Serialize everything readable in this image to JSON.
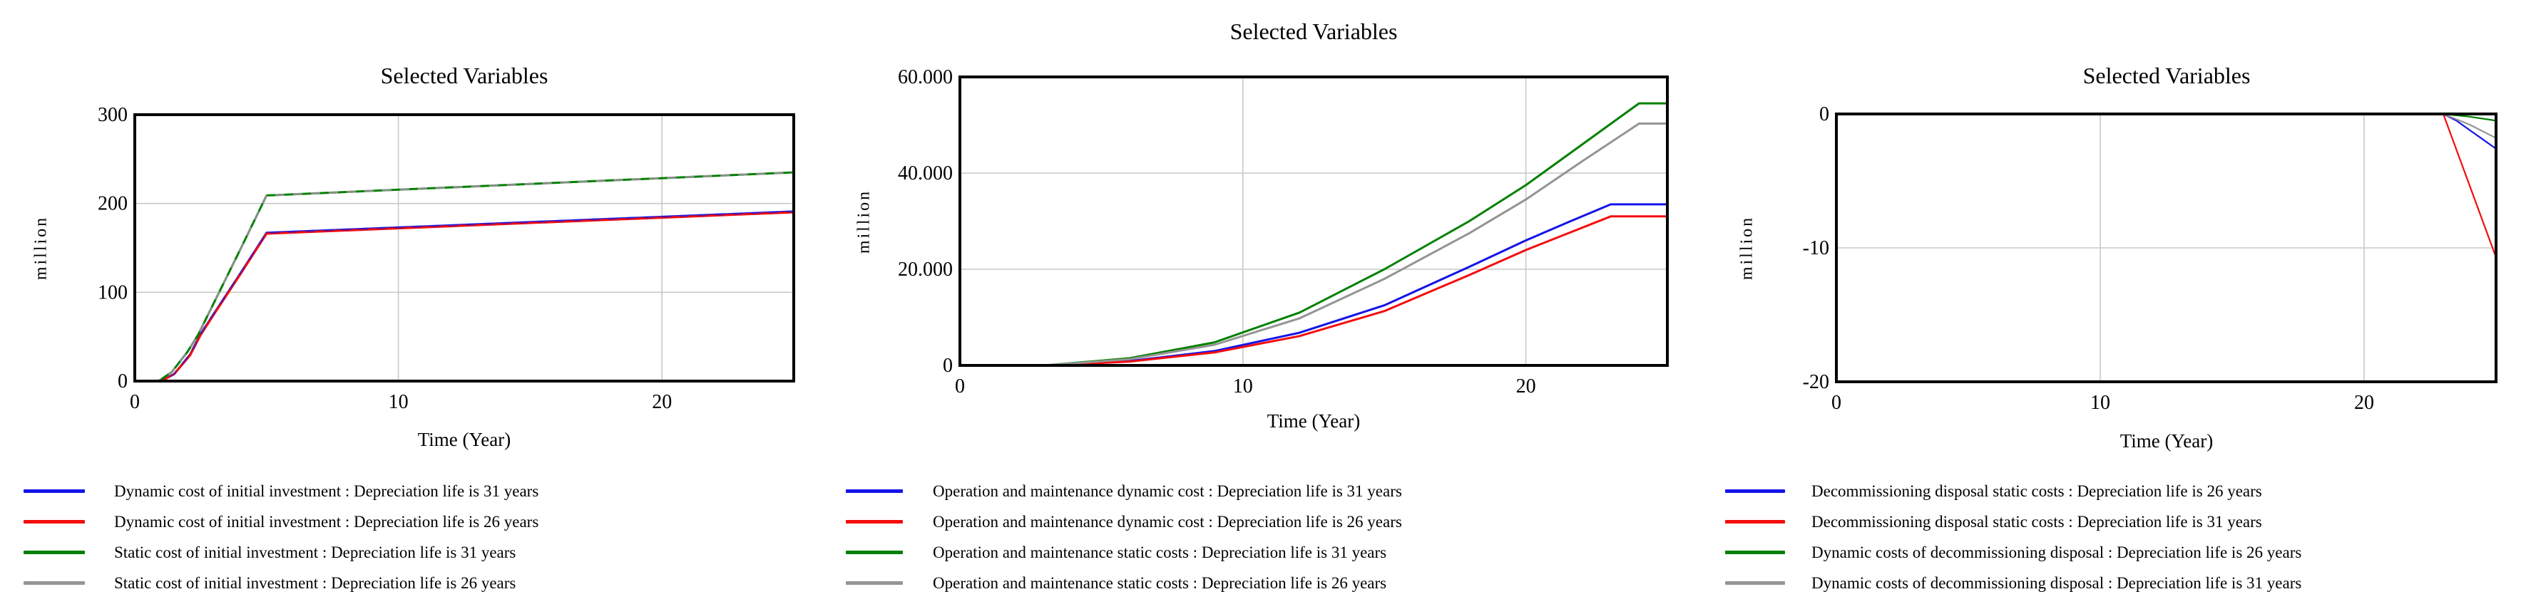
{
  "colors": {
    "blue": "#1414e8",
    "red": "#f40d0d",
    "green": "#008000",
    "gray": "#949494",
    "grid": "#c9c9c9",
    "axis": "#000000"
  },
  "chart_data": [
    {
      "type": "line",
      "title": "Selected Variables",
      "xlabel": "Time (Year)",
      "ylabel": "million",
      "xlim": [
        0,
        25
      ],
      "ylim": [
        0,
        300
      ],
      "grid": "on",
      "legend_position": "bottom",
      "xticks": [
        {
          "v": 0,
          "label": "0"
        },
        {
          "v": 10,
          "label": "10"
        },
        {
          "v": 20,
          "label": "20"
        }
      ],
      "yticks": [
        {
          "v": 300,
          "label": "300"
        },
        {
          "v": 200,
          "label": "200"
        },
        {
          "v": 100,
          "label": "100"
        },
        {
          "v": 0,
          "label": "0"
        }
      ],
      "series": [
        {
          "name": "Dynamic cost of initial investment : Depreciation life is 31 years",
          "color": "#1414e8",
          "points": [
            [
              0,
              0
            ],
            [
              1,
              0
            ],
            [
              1.5,
              8
            ],
            [
              2.1,
              30
            ],
            [
              2.5,
              53
            ],
            [
              3,
              76
            ],
            [
              4,
              121
            ],
            [
              5,
              167
            ],
            [
              25,
              191
            ]
          ]
        },
        {
          "name": "Dynamic cost of initial investment : Depreciation life is 26 years",
          "color": "#f40d0d",
          "points": [
            [
              0,
              0
            ],
            [
              1,
              0
            ],
            [
              1.5,
              8
            ],
            [
              2.1,
              29
            ],
            [
              2.5,
              52
            ],
            [
              3,
              75
            ],
            [
              4,
              120
            ],
            [
              5,
              166
            ],
            [
              25,
              190
            ]
          ]
        },
        {
          "name": "Static cost of initial investment : Depreciation life is 31 years",
          "color": "#008000",
          "points": [
            [
              0,
              0
            ],
            [
              0.9,
              0
            ],
            [
              1.4,
              10
            ],
            [
              2,
              33
            ],
            [
              2.4,
              52
            ],
            [
              3,
              88
            ],
            [
              4,
              148
            ],
            [
              5,
              209
            ],
            [
              25,
              235
            ]
          ]
        },
        {
          "name": "Static cost of initial investment : Depreciation life is 26 years",
          "color": "#949494",
          "points": [
            [
              0,
              0
            ],
            [
              0.9,
              0
            ],
            [
              1.4,
              10
            ],
            [
              2,
              33
            ],
            [
              2.4,
              52
            ],
            [
              3,
              88
            ],
            [
              4,
              148
            ],
            [
              5,
              209
            ],
            [
              25,
              235
            ]
          ]
        }
      ]
    },
    {
      "type": "line",
      "title": "Selected Variables",
      "xlabel": "Time (Year)",
      "ylabel": "million",
      "xlim": [
        0,
        25
      ],
      "ylim": [
        0,
        60000
      ],
      "grid": "on",
      "legend_position": "bottom",
      "xticks": [
        {
          "v": 0,
          "label": "0"
        },
        {
          "v": 10,
          "label": "10"
        },
        {
          "v": 20,
          "label": "20"
        }
      ],
      "yticks": [
        {
          "v": 60000,
          "label": "60.000"
        },
        {
          "v": 40000,
          "label": "40.000"
        },
        {
          "v": 20000,
          "label": "20.000"
        },
        {
          "v": 0,
          "label": "0"
        }
      ],
      "series": [
        {
          "name": "Operation and maintenance dynamic cost : Depreciation life is 31 years",
          "color": "#1414e8",
          "points": [
            [
              0,
              0
            ],
            [
              3.2,
              0
            ],
            [
              6,
              900
            ],
            [
              9,
              3000
            ],
            [
              12,
              6800
            ],
            [
              15,
              12500
            ],
            [
              18,
              20500
            ],
            [
              20,
              26000
            ],
            [
              21.5,
              29800
            ],
            [
              23,
              33500
            ],
            [
              25,
              33500
            ]
          ]
        },
        {
          "name": "Operation and maintenance dynamic cost : Depreciation life is 26 years",
          "color": "#f40d0d",
          "points": [
            [
              0,
              0
            ],
            [
              3.2,
              0
            ],
            [
              6,
              800
            ],
            [
              9,
              2700
            ],
            [
              12,
              6100
            ],
            [
              15,
              11300
            ],
            [
              18,
              18800
            ],
            [
              20,
              24000
            ],
            [
              21.5,
              27500
            ],
            [
              23,
              31000
            ],
            [
              25,
              31000
            ]
          ]
        },
        {
          "name": "Operation and maintenance static costs : Depreciation life is 31 years",
          "color": "#008000",
          "points": [
            [
              0,
              0
            ],
            [
              3,
              0
            ],
            [
              6,
              1500
            ],
            [
              9,
              4800
            ],
            [
              12,
              11000
            ],
            [
              15,
              20000
            ],
            [
              18,
              30000
            ],
            [
              20,
              37500
            ],
            [
              22,
              46000
            ],
            [
              24,
              54500
            ],
            [
              25,
              54500
            ]
          ]
        },
        {
          "name": "Operation and maintenance static costs : Depreciation life is 26 years",
          "color": "#949494",
          "points": [
            [
              0,
              0
            ],
            [
              3,
              0
            ],
            [
              6,
              1300
            ],
            [
              9,
              4300
            ],
            [
              12,
              9800
            ],
            [
              15,
              18000
            ],
            [
              18,
              27500
            ],
            [
              20,
              34500
            ],
            [
              22,
              42500
            ],
            [
              24,
              50300
            ],
            [
              25,
              50300
            ]
          ]
        }
      ]
    },
    {
      "type": "line",
      "title": "Selected Variables",
      "xlabel": "Time (Year)",
      "ylabel": "million",
      "xlim": [
        0,
        25
      ],
      "ylim": [
        -20,
        0
      ],
      "grid": "on",
      "legend_position": "bottom",
      "xticks": [
        {
          "v": 0,
          "label": "0"
        },
        {
          "v": 10,
          "label": "10"
        },
        {
          "v": 20,
          "label": "20"
        }
      ],
      "yticks": [
        {
          "v": 0,
          "label": "0"
        },
        {
          "v": -10,
          "label": "-10"
        },
        {
          "v": -20,
          "label": "-20"
        }
      ],
      "series": [
        {
          "name": "Decommissioning disposal static costs : Depreciation life is 26 years",
          "color": "#1414e8",
          "points": [
            [
              0,
              0
            ],
            [
              23,
              0
            ],
            [
              23.5,
              -0.5
            ],
            [
              24,
              -1.2
            ],
            [
              24.5,
              -1.9
            ],
            [
              25,
              -2.6
            ]
          ]
        },
        {
          "name": "Decommissioning disposal static costs : Depreciation life is 31 years",
          "color": "#f40d0d",
          "points": [
            [
              0,
              0
            ],
            [
              23,
              0
            ],
            [
              25,
              -10.7
            ]
          ]
        },
        {
          "name": "Dynamic costs of decommissioning disposal : Depreciation life is 26 years",
          "color": "#008000",
          "points": [
            [
              0,
              0
            ],
            [
              23,
              0
            ],
            [
              24,
              -0.2
            ],
            [
              25,
              -0.5
            ]
          ]
        },
        {
          "name": "Dynamic costs of decommissioning disposal : Depreciation life is 31 years",
          "color": "#949494",
          "points": [
            [
              0,
              0
            ],
            [
              23,
              0
            ],
            [
              24,
              -0.8
            ],
            [
              25,
              -1.8
            ]
          ]
        }
      ]
    }
  ]
}
